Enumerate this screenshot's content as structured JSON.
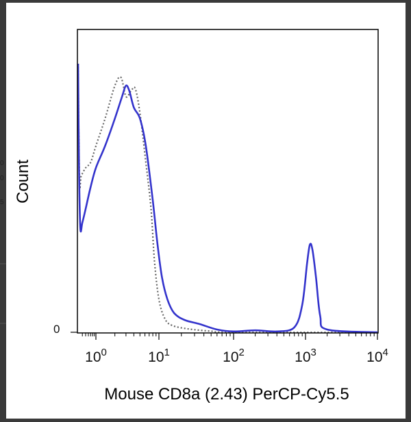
{
  "chart_data": {
    "type": "line",
    "title": "",
    "xlabel": "Mouse CD8a (2.43) PerCP-Cy5.5",
    "ylabel": "Count",
    "x_scale": "log (biexponential display)",
    "xlim": [
      0.3,
      10000
    ],
    "ylim": [
      0,
      1
    ],
    "y_tick_labels": [
      "0"
    ],
    "x_ticks": [
      {
        "base": "10",
        "exp": "0",
        "value": 1
      },
      {
        "base": "10",
        "exp": "1",
        "value": 10
      },
      {
        "base": "10",
        "exp": "2",
        "value": 100
      },
      {
        "base": "10",
        "exp": "3",
        "value": 1000
      },
      {
        "base": "10",
        "exp": "4",
        "value": 10000
      }
    ],
    "grid": false,
    "legend": "none",
    "series": [
      {
        "style": "solid",
        "color": "#3333cc",
        "points": [
          [
            0.3,
            0.98
          ],
          [
            0.32,
            0.6
          ],
          [
            0.35,
            0.38
          ],
          [
            0.4,
            0.4
          ],
          [
            0.5,
            0.45
          ],
          [
            0.7,
            0.53
          ],
          [
            1.0,
            0.6
          ],
          [
            1.4,
            0.68
          ],
          [
            2.0,
            0.78
          ],
          [
            2.6,
            0.86
          ],
          [
            3.0,
            0.9
          ],
          [
            3.4,
            0.88
          ],
          [
            4.0,
            0.82
          ],
          [
            5.0,
            0.78
          ],
          [
            6.2,
            0.68
          ],
          [
            8.0,
            0.48
          ],
          [
            9.5,
            0.32
          ],
          [
            11,
            0.2
          ],
          [
            13,
            0.12
          ],
          [
            16,
            0.07
          ],
          [
            22,
            0.045
          ],
          [
            35,
            0.03
          ],
          [
            60,
            0.01
          ],
          [
            100,
            0.003
          ],
          [
            200,
            0.007
          ],
          [
            400,
            0.003
          ],
          [
            700,
            0.018
          ],
          [
            900,
            0.1
          ],
          [
            1050,
            0.25
          ],
          [
            1150,
            0.32
          ],
          [
            1250,
            0.3
          ],
          [
            1400,
            0.2
          ],
          [
            1600,
            0.06
          ],
          [
            2000,
            0.01
          ],
          [
            10000,
            0.0
          ]
        ]
      },
      {
        "style": "dotted",
        "color": "#666666",
        "points": [
          [
            0.3,
            0.98
          ],
          [
            0.33,
            0.55
          ],
          [
            0.37,
            0.57
          ],
          [
            0.5,
            0.6
          ],
          [
            0.7,
            0.62
          ],
          [
            1.0,
            0.68
          ],
          [
            1.4,
            0.78
          ],
          [
            2.0,
            0.9
          ],
          [
            2.5,
            0.93
          ],
          [
            3.0,
            0.86
          ],
          [
            3.6,
            0.88
          ],
          [
            4.2,
            0.89
          ],
          [
            5.0,
            0.8
          ],
          [
            6.2,
            0.62
          ],
          [
            7.5,
            0.45
          ],
          [
            8.5,
            0.26
          ],
          [
            10,
            0.12
          ],
          [
            12,
            0.05
          ],
          [
            15,
            0.025
          ],
          [
            25,
            0.012
          ],
          [
            50,
            0.004
          ],
          [
            100,
            0.0
          ],
          [
            10000,
            0.0
          ]
        ]
      }
    ]
  }
}
